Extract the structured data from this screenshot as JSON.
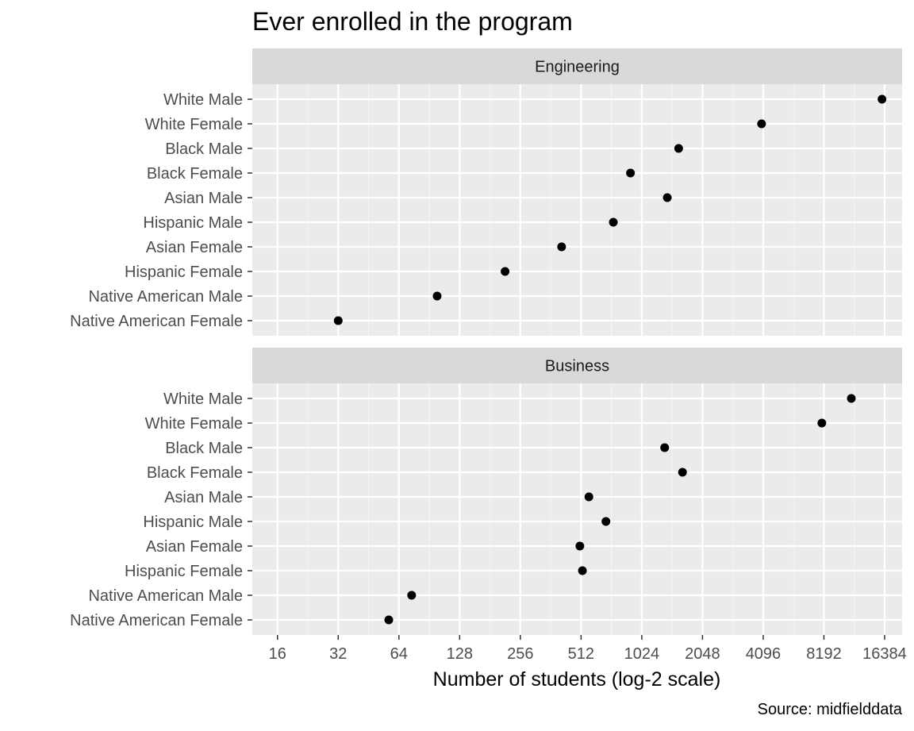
{
  "chart_data": {
    "type": "scatter",
    "title": "Ever enrolled in the program",
    "xlabel": "Number of students (log-2 scale)",
    "caption": "Source: midfielddata",
    "x_scale": "log2",
    "xlim": [
      12,
      20000
    ],
    "x_ticks": [
      16,
      32,
      64,
      128,
      256,
      512,
      1024,
      2048,
      4096,
      8192,
      16384
    ],
    "x_tick_labels": [
      "16",
      "32",
      "64",
      "128",
      "256",
      "512",
      "1024",
      "2048",
      "4096",
      "8192",
      "16384"
    ],
    "categories": [
      "White Male",
      "White Female",
      "Black Male",
      "Black Female",
      "Asian Male",
      "Hispanic Male",
      "Asian Female",
      "Hispanic Female",
      "Native American Male",
      "Native American Female"
    ],
    "grid": true,
    "facets": [
      {
        "name": "Engineering",
        "values": [
          15900,
          4020,
          1560,
          900,
          1370,
          740,
          410,
          215,
          99,
          32
        ]
      },
      {
        "name": "Business",
        "values": [
          11200,
          8000,
          1330,
          1630,
          560,
          680,
          505,
          520,
          74,
          57
        ]
      }
    ],
    "colors": {
      "panel": "#ebebeb",
      "strip": "#d9d9d9",
      "grid": "#ffffff",
      "point": "#000000"
    }
  }
}
